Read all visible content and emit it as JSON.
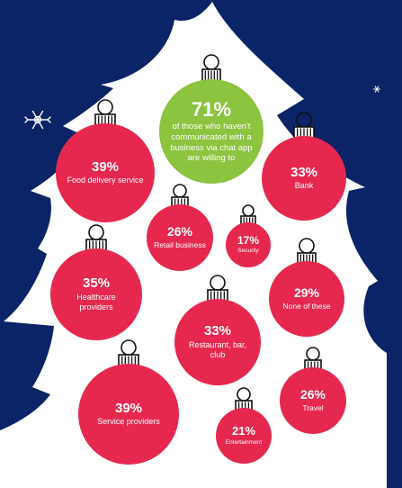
{
  "colors": {
    "navy": "#0b2467",
    "tree": "#ffffff",
    "ornament": "#e6284f",
    "highlight": "#8cc33f",
    "text": "#ffffff"
  },
  "chart_data": {
    "type": "bubble",
    "unit": "%",
    "highlight": {
      "value": 71,
      "label_text": "71%",
      "label": "of those who haven't communicated with a business via chat app are willing to"
    },
    "items": [
      {
        "label": "Food delivery service",
        "value": 39,
        "value_text": "39%"
      },
      {
        "label": "Bank",
        "value": 33,
        "value_text": "33%"
      },
      {
        "label": "Retail business",
        "value": 26,
        "value_text": "26%"
      },
      {
        "label": "Security",
        "value": 17,
        "value_text": "17%"
      },
      {
        "label": "Healthcare providers",
        "value": 35,
        "value_text": "35%"
      },
      {
        "label": "None of these",
        "value": 29,
        "value_text": "29%"
      },
      {
        "label": "Restaurant, bar, club",
        "value": 33,
        "value_text": "33%"
      },
      {
        "label": "Service providers",
        "value": 39,
        "value_text": "39%"
      },
      {
        "label": "Travel",
        "value": 26,
        "value_text": "26%"
      },
      {
        "label": "Entertainment",
        "value": 21,
        "value_text": "21%"
      }
    ]
  }
}
